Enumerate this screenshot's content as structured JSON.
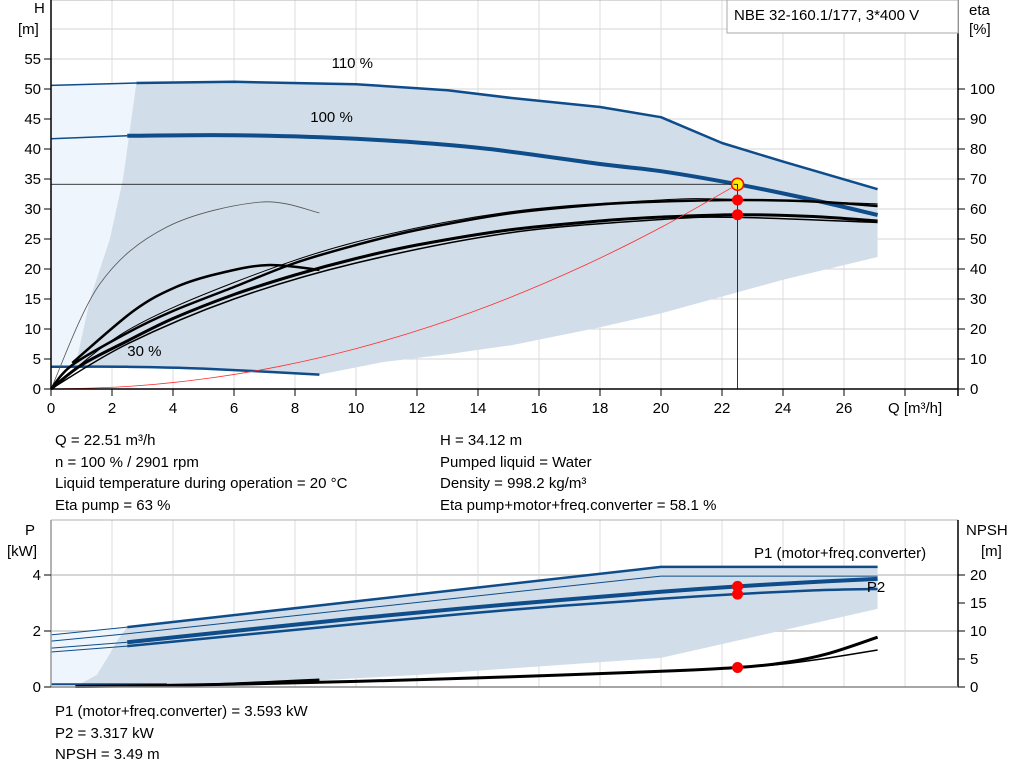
{
  "chart_data": [
    {
      "type": "line",
      "title": "NBE 32-160.1/177, 3*400 V",
      "xlabel": "Q [m³/h]",
      "ylabel": {
        "name": "H",
        "unit": "[m]"
      },
      "y2label": {
        "name": "eta",
        "unit": "[%]"
      },
      "xlim": [
        0,
        28
      ],
      "ylim": [
        0,
        60
      ],
      "y2lim": [
        0,
        120
      ],
      "x_ticks": [
        0,
        2,
        4,
        6,
        8,
        10,
        12,
        14,
        16,
        18,
        20,
        22,
        24,
        26
      ],
      "y_ticks": [
        0,
        5,
        10,
        15,
        20,
        25,
        30,
        35,
        40,
        45,
        50,
        55
      ],
      "y2_ticks": [
        0,
        10,
        20,
        30,
        40,
        50,
        60,
        70,
        80,
        90,
        100
      ],
      "grid": true,
      "curve_labels": [
        {
          "text": "110 %",
          "at": [
            9.2,
            53.5
          ]
        },
        {
          "text": "100 %",
          "at": [
            8.5,
            44.5
          ]
        },
        {
          "text": "30 %",
          "at": [
            2.5,
            5.5
          ]
        }
      ],
      "regions": [
        {
          "color": "#eef5fc",
          "points": [
            [
              0,
              3.7
            ],
            [
              0,
              50.6
            ],
            [
              2.8,
              51
            ],
            [
              2.36,
              35
            ],
            [
              1.93,
              25
            ],
            [
              1.28,
              15
            ],
            [
              0.85,
              5
            ],
            [
              0.75,
              3.7
            ]
          ]
        },
        {
          "color": "#d1dde8",
          "points": [
            [
              2.8,
              51
            ],
            [
              6,
              51.2
            ],
            [
              10,
              50.8
            ],
            [
              13,
              49.8
            ],
            [
              15.1,
              48.5
            ],
            [
              18,
              47
            ],
            [
              20,
              45.3
            ],
            [
              22,
              41
            ],
            [
              24,
              37.9
            ],
            [
              27.1,
              33.3
            ],
            [
              27.1,
              22
            ],
            [
              24,
              18.2
            ],
            [
              20,
              12.6
            ],
            [
              18,
              10.3
            ],
            [
              15.1,
              7.3
            ],
            [
              13,
              5.8
            ],
            [
              10.9,
              4.5
            ],
            [
              8.8,
              2.4
            ],
            [
              5,
              3.4
            ],
            [
              2.5,
              3.7
            ],
            [
              0.75,
              3.7
            ],
            [
              0.85,
              5
            ],
            [
              1.28,
              15
            ],
            [
              1.93,
              25
            ],
            [
              2.36,
              35
            ]
          ]
        }
      ],
      "series": [
        {
          "axis": "H",
          "color": "#0e4c8a",
          "width": 1.5,
          "points": [
            [
              0,
              50.6
            ],
            [
              2.8,
              51
            ]
          ]
        },
        {
          "name": "110 %",
          "axis": "H",
          "color": "#0e4c8a",
          "width": 2.5,
          "points": [
            [
              2.8,
              51
            ],
            [
              6,
              51.2
            ],
            [
              10,
              50.8
            ],
            [
              13,
              49.8
            ],
            [
              15.1,
              48.5
            ],
            [
              18,
              47
            ],
            [
              20,
              45.3
            ],
            [
              22,
              41
            ],
            [
              24,
              37.9
            ],
            [
              27.1,
              33.3
            ]
          ],
          "smooth": false
        },
        {
          "axis": "H",
          "color": "#0e4c8a",
          "width": 1.5,
          "points": [
            [
              0,
              41.7
            ],
            [
              2.5,
              42.2
            ]
          ]
        },
        {
          "name": "100 %",
          "axis": "H",
          "color": "#0e4c8a",
          "width": 4,
          "points": [
            [
              2.5,
              42.2
            ],
            [
              6,
              42.3
            ],
            [
              10,
              41.7
            ],
            [
              14,
              40.2
            ],
            [
              18,
              37.5
            ],
            [
              20,
              36.3
            ],
            [
              22.51,
              34.12
            ],
            [
              25,
              31.5
            ],
            [
              27.1,
              29
            ]
          ]
        },
        {
          "name": "30 %",
          "axis": "H",
          "color": "#0e4c8a",
          "width": 2.5,
          "points": [
            [
              0,
              3.7
            ],
            [
              2.5,
              3.7
            ],
            [
              5,
              3.4
            ],
            [
              8.8,
              2.4
            ]
          ]
        },
        {
          "axis": "eta",
          "color": "#555555",
          "width": 0.8,
          "points": [
            [
              0,
              0
            ],
            [
              1.6,
              35
            ],
            [
              3.8,
              54
            ],
            [
              6.85,
              62.3
            ],
            [
              8.8,
              58.7
            ]
          ]
        },
        {
          "axis": "eta",
          "color": "#000000",
          "width": 2.5,
          "points": [
            [
              0.7,
              8.7
            ],
            [
              2.7,
              26
            ],
            [
              4.1,
              34
            ],
            [
              5.5,
              38.5
            ],
            [
              7.1,
              41.3
            ],
            [
              8.8,
              39.7
            ]
          ]
        },
        {
          "axis": "eta",
          "color": "#000000",
          "width": 1,
          "points": [
            [
              0,
              0
            ],
            [
              2.5,
              19.5
            ],
            [
              6,
              35.5
            ],
            [
              10,
              49
            ],
            [
              15,
              59
            ],
            [
              20,
              63
            ],
            [
              22.51,
              63.2
            ],
            [
              27.1,
              61.7
            ]
          ]
        },
        {
          "axis": "eta",
          "color": "#000000",
          "width": 2.5,
          "points": [
            [
              0,
              0
            ],
            [
              0.7,
              8
            ],
            [
              2.5,
              18.7
            ],
            [
              4,
              26
            ],
            [
              6,
              34
            ],
            [
              8,
              42
            ],
            [
              10,
              48
            ],
            [
              12,
              53
            ],
            [
              15,
              58.5
            ],
            [
              18,
              61.5
            ],
            [
              20,
              62.5
            ],
            [
              22.51,
              63
            ],
            [
              25,
              62.5
            ],
            [
              27.1,
              61
            ]
          ]
        },
        {
          "axis": "eta",
          "color": "#000000",
          "width": 1.5,
          "points": [
            [
              0,
              0
            ],
            [
              2.5,
              15
            ],
            [
              6,
              30
            ],
            [
              10,
              42
            ],
            [
              15,
              52
            ],
            [
              20,
              56.5
            ],
            [
              22.51,
              57.2
            ],
            [
              27.1,
              55.5
            ]
          ]
        },
        {
          "axis": "eta",
          "color": "#000000",
          "width": 3,
          "points": [
            [
              0,
              0
            ],
            [
              1,
              8
            ],
            [
              2.5,
              16
            ],
            [
              4,
              23.5
            ],
            [
              6,
              31.5
            ],
            [
              8,
              38
            ],
            [
              10,
              43.5
            ],
            [
              12,
              48
            ],
            [
              15,
              53
            ],
            [
              18,
              56
            ],
            [
              20,
              57.3
            ],
            [
              22.51,
              58.1
            ],
            [
              25,
              57.5
            ],
            [
              27.1,
              56
            ]
          ]
        },
        {
          "axis": "H",
          "color": "#ff3030",
          "width": 0.8,
          "points": [
            [
              0,
              0
            ],
            [
              2.5,
              0.42
            ],
            [
              5,
              1.68
            ],
            [
              7.5,
              3.79
            ],
            [
              10,
              6.73
            ],
            [
              12.5,
              10.52
            ],
            [
              15,
              15.15
            ],
            [
              17.5,
              20.62
            ],
            [
              20,
              26.94
            ],
            [
              22.51,
              34.12
            ]
          ]
        }
      ],
      "duty_point": {
        "Q": 22.51,
        "H": 34.12,
        "eta_pump": 63,
        "eta_total": 58.1,
        "marker_color": "#ffee00",
        "dot_color": "#ff0000"
      }
    },
    {
      "type": "line",
      "ylabel": {
        "name": "P",
        "unit": "[kW]"
      },
      "y2label": {
        "name": "NPSH",
        "unit": "[m]"
      },
      "xlim": [
        0,
        28
      ],
      "ylim": [
        0,
        6
      ],
      "y2lim": [
        0,
        30
      ],
      "y_ticks": [
        0,
        2,
        4
      ],
      "y2_ticks": [
        0,
        5,
        10,
        15,
        20
      ],
      "grid": true,
      "curve_labels": [
        {
          "text": "P1 (motor+freq.converter)",
          "at": [
            23.05,
            4.6
          ],
          "color": "#1f5e9c"
        },
        {
          "text": "P2",
          "at": [
            26.75,
            3.4
          ],
          "color": "#1f5e9c"
        }
      ],
      "regions": [
        {
          "color": "#eef5fc",
          "points": [
            [
              0,
              0.1
            ],
            [
              0,
              1.86
            ],
            [
              2.5,
              2.14
            ],
            [
              2.2,
              1.7
            ],
            [
              1.9,
              1.14
            ],
            [
              1.5,
              0.43
            ],
            [
              0.9,
              0.08
            ]
          ]
        },
        {
          "color": "#d1dde8",
          "points": [
            [
              2.5,
              2.14
            ],
            [
              20,
              4.29
            ],
            [
              27.1,
              4.29
            ],
            [
              27.1,
              2.79
            ],
            [
              20,
              1.04
            ],
            [
              12,
              0.43
            ],
            [
              7.1,
              0.14
            ],
            [
              2.5,
              0.06
            ],
            [
              0.9,
              0.08
            ],
            [
              1.5,
              0.43
            ],
            [
              1.9,
              1.14
            ],
            [
              2.2,
              1.7
            ]
          ]
        }
      ],
      "series": [
        {
          "axis": "P",
          "color": "#0e4c8a",
          "width": 1,
          "points": [
            [
              0,
              1.86
            ],
            [
              2.5,
              2.14
            ]
          ]
        },
        {
          "axis": "P",
          "color": "#0e4c8a",
          "width": 2.5,
          "points": [
            [
              2.5,
              2.14
            ],
            [
              20,
              4.29
            ],
            [
              27.1,
              4.29
            ]
          ],
          "smooth": false
        },
        {
          "axis": "P",
          "color": "#0e4c8a",
          "width": 1,
          "points": [
            [
              0,
              1.64
            ],
            [
              2.5,
              1.9
            ],
            [
              20,
              3.96
            ],
            [
              27.1,
              3.96
            ]
          ],
          "smooth": false
        },
        {
          "axis": "P",
          "color": "#0e4c8a",
          "width": 1,
          "points": [
            [
              0,
              1.39
            ],
            [
              2.5,
              1.6
            ]
          ]
        },
        {
          "name": "P1 (motor+freq.converter)",
          "axis": "P",
          "color": "#0e4c8a",
          "width": 4,
          "points": [
            [
              2.5,
              1.6
            ],
            [
              10,
              2.45
            ],
            [
              15,
              2.95
            ],
            [
              20,
              3.4
            ],
            [
              22.51,
              3.593
            ],
            [
              25,
              3.75
            ],
            [
              27.1,
              3.86
            ]
          ]
        },
        {
          "axis": "P",
          "color": "#0e4c8a",
          "width": 1,
          "points": [
            [
              0,
              1.25
            ],
            [
              2.5,
              1.46
            ]
          ]
        },
        {
          "name": "P2",
          "axis": "P",
          "color": "#0e4c8a",
          "width": 2.5,
          "points": [
            [
              2.5,
              1.46
            ],
            [
              10,
              2.25
            ],
            [
              15,
              2.75
            ],
            [
              20,
              3.15
            ],
            [
              22.51,
              3.317
            ],
            [
              25,
              3.45
            ],
            [
              27.1,
              3.5
            ]
          ]
        },
        {
          "axis": "P",
          "color": "#0e4c8a",
          "width": 2,
          "points": [
            [
              0,
              0.1
            ],
            [
              3.8,
              0.1
            ]
          ],
          "smooth": false
        },
        {
          "axis": "NPSH",
          "color": "#000000",
          "width": 2.5,
          "points": [
            [
              1,
              0.1
            ],
            [
              5,
              0.4
            ],
            [
              8.8,
              1.3
            ]
          ]
        },
        {
          "axis": "NPSH",
          "color": "#000000",
          "width": 1.5,
          "points": [
            [
              22.51,
              3.49
            ],
            [
              24,
              4.1
            ],
            [
              25.5,
              5.2
            ],
            [
              27.1,
              6.6
            ]
          ]
        },
        {
          "name": "NPSH",
          "axis": "NPSH",
          "color": "#000000",
          "width": 3,
          "points": [
            [
              0.8,
              0.1
            ],
            [
              5,
              0.4
            ],
            [
              10,
              1.0
            ],
            [
              15,
              1.8
            ],
            [
              20,
              2.8
            ],
            [
              22.51,
              3.49
            ],
            [
              24,
              4.3
            ],
            [
              25.5,
              6
            ],
            [
              27.1,
              8.9
            ]
          ]
        }
      ],
      "duty_point": {
        "Q": 22.51,
        "P1": 3.593,
        "P2": 3.317,
        "NPSH": 3.49,
        "dot_color": "#ff0000"
      }
    }
  ],
  "info": {
    "left": [
      "Q = 22.51 m³/h",
      "n = 100 % / 2901 rpm",
      "Liquid temperature during operation = 20 °C",
      "Eta pump = 63 %"
    ],
    "right": [
      "H = 34.12 m",
      "Pumped liquid = Water",
      "Density = 998.2 kg/m³",
      "Eta pump+motor+freq.converter = 58.1 %"
    ],
    "bottom": [
      "P1 (motor+freq.converter) = 3.593 kW",
      "P2 = 3.317 kW",
      "NPSH = 3.49 m"
    ]
  }
}
